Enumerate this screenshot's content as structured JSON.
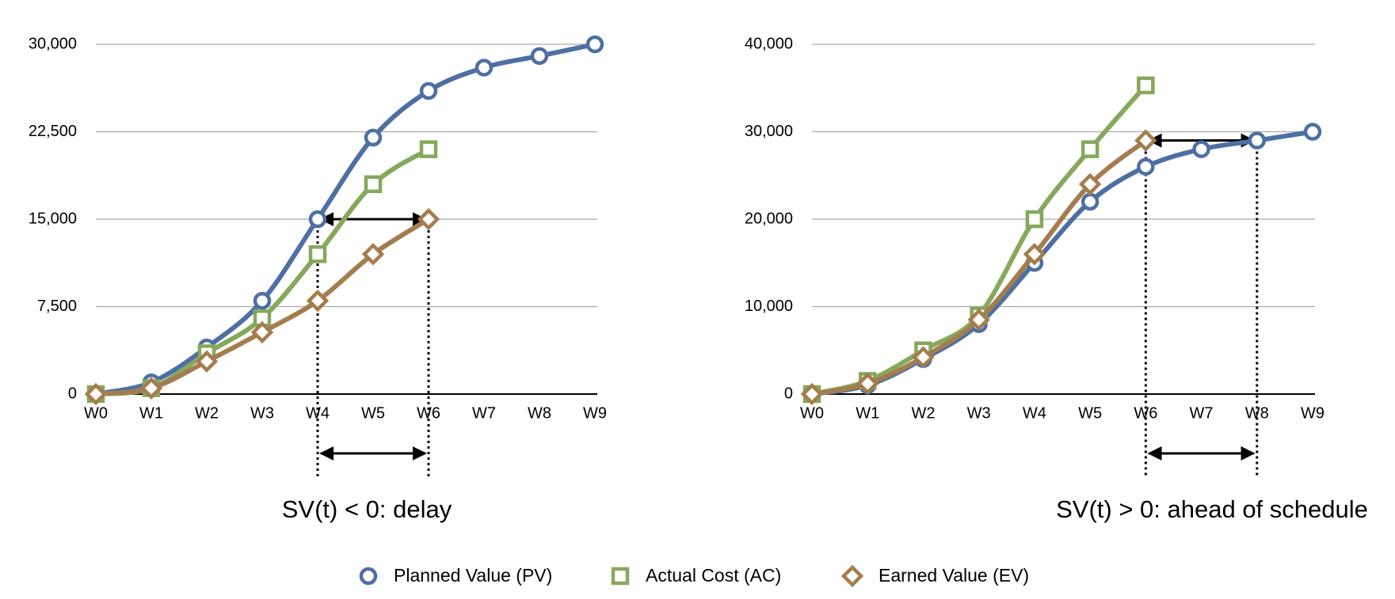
{
  "chart_data": [
    {
      "type": "line",
      "annotation": "SV(t) < 0: delay",
      "categories": [
        "W0",
        "W1",
        "W2",
        "W3",
        "W4",
        "W5",
        "W6",
        "W7",
        "W8",
        "W9"
      ],
      "ylim": [
        0,
        30000
      ],
      "yticks": [
        {
          "value": 0,
          "label": "0"
        },
        {
          "value": 7500,
          "label": "7,500"
        },
        {
          "value": 15000,
          "label": "15,000"
        },
        {
          "value": 22500,
          "label": "22,500"
        },
        {
          "value": 30000,
          "label": "30,000"
        }
      ],
      "grid": true,
      "series": [
        {
          "name": "Planned Value (PV)",
          "color": "#4e6fa3",
          "marker": "circle",
          "values": [
            0,
            1000,
            4000,
            8000,
            15000,
            22000,
            26000,
            28000,
            29000,
            30000
          ]
        },
        {
          "name": "Actual Cost (AC)",
          "color": "#86a85c",
          "marker": "square",
          "values": [
            0,
            500,
            3500,
            6500,
            12000,
            18000,
            21000,
            null,
            null,
            null
          ]
        },
        {
          "name": "Earned Value (EV)",
          "color": "#a47d4f",
          "marker": "diamond",
          "values": [
            0,
            500,
            2800,
            5300,
            8000,
            12000,
            15000,
            null,
            null,
            null
          ]
        }
      ]
    },
    {
      "type": "line",
      "annotation": "SV(t) > 0: ahead of schedule",
      "categories": [
        "W0",
        "W1",
        "W2",
        "W3",
        "W4",
        "W5",
        "W6",
        "W7",
        "W8",
        "W9"
      ],
      "ylim": [
        0,
        40000
      ],
      "yticks": [
        {
          "value": 0,
          "label": "0"
        },
        {
          "value": 10000,
          "label": "10,000"
        },
        {
          "value": 20000,
          "label": "20,000"
        },
        {
          "value": 30000,
          "label": "30,000"
        },
        {
          "value": 40000,
          "label": "40,000"
        }
      ],
      "grid": true,
      "series": [
        {
          "color": "#4e6fa3",
          "marker": "circle",
          "values": [
            0,
            1000,
            4000,
            8000,
            15000,
            22000,
            26000,
            28000,
            29000,
            30000
          ]
        },
        {
          "color": "#86a85c",
          "marker": "square",
          "values": [
            0,
            1500,
            5000,
            9000,
            20000,
            28000,
            35300,
            null,
            null,
            null
          ]
        },
        {
          "color": "#a47d4f",
          "marker": "diamond",
          "values": [
            0,
            1200,
            4200,
            8500,
            16000,
            24000,
            29000,
            null,
            null,
            null
          ]
        }
      ]
    }
  ]
}
